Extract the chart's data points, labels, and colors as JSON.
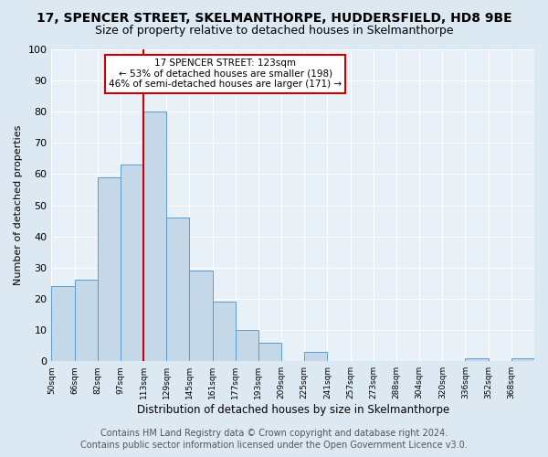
{
  "title": "17, SPENCER STREET, SKELMANTHORPE, HUDDERSFIELD, HD8 9BE",
  "subtitle": "Size of property relative to detached houses in Skelmanthorpe",
  "xlabel": "Distribution of detached houses by size in Skelmanthorpe",
  "ylabel": "Number of detached properties",
  "bin_labels": [
    "50sqm",
    "66sqm",
    "82sqm",
    "97sqm",
    "113sqm",
    "129sqm",
    "145sqm",
    "161sqm",
    "177sqm",
    "193sqm",
    "209sqm",
    "225sqm",
    "241sqm",
    "257sqm",
    "273sqm",
    "288sqm",
    "304sqm",
    "320sqm",
    "336sqm",
    "352sqm",
    "368sqm"
  ],
  "bar_heights": [
    24,
    26,
    59,
    63,
    80,
    46,
    29,
    19,
    10,
    6,
    0,
    3,
    0,
    0,
    0,
    0,
    0,
    0,
    1,
    0,
    1
  ],
  "bar_color": "#c5d8e8",
  "bar_edge_color": "#5b9bd5",
  "vline_bin": 5,
  "vline_label": "123sqm",
  "vline_color": "#cc0000",
  "annotation_title": "17 SPENCER STREET: 123sqm",
  "annotation_line1": "← 53% of detached houses are smaller (198)",
  "annotation_line2": "46% of semi-detached houses are larger (171) →",
  "annotation_box_color": "#cc0000",
  "annotation_bg": "#ffffff",
  "ylim": [
    0,
    100
  ],
  "yticks": [
    0,
    10,
    20,
    30,
    40,
    50,
    60,
    70,
    80,
    90,
    100
  ],
  "footer_line1": "Contains HM Land Registry data © Crown copyright and database right 2024.",
  "footer_line2": "Contains public sector information licensed under the Open Government Licence v3.0.",
  "background_color": "#dce8f2",
  "plot_bg_color": "#e8f0f8",
  "grid_color": "#ffffff",
  "title_fontsize": 10,
  "subtitle_fontsize": 9,
  "footer_fontsize": 7
}
